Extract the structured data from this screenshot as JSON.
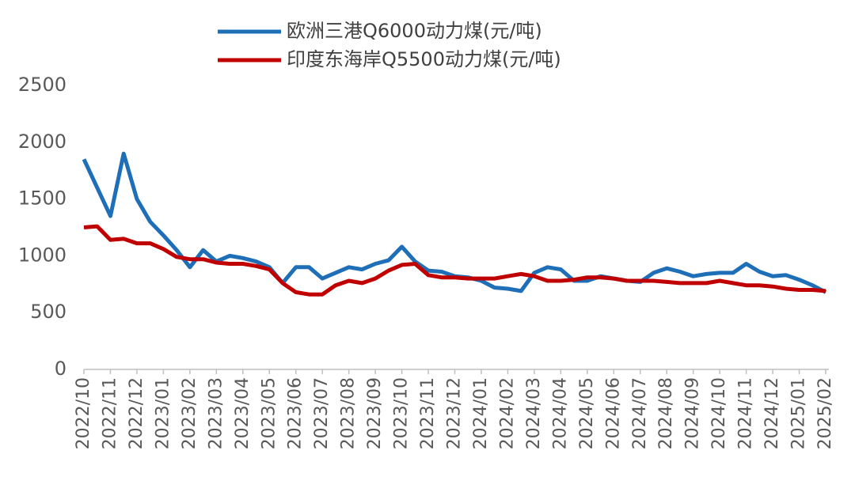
{
  "chart_data": {
    "type": "line",
    "categories": [
      "2022/10",
      null,
      "2022/11",
      null,
      "2022/12",
      null,
      "2023/01",
      null,
      "2023/02",
      null,
      "2023/03",
      null,
      "2023/04",
      null,
      "2023/05",
      null,
      "2023/06",
      null,
      "2023/07",
      null,
      "2023/08",
      null,
      "2023/09",
      null,
      "2023/10",
      null,
      "2023/11",
      null,
      "2023/12",
      null,
      "2024/01",
      null,
      "2024/02",
      null,
      "2024/03",
      null,
      "2024/04",
      null,
      "2024/05",
      null,
      "2024/06",
      null,
      "2024/07",
      null,
      "2024/08",
      null,
      "2024/09",
      null,
      "2024/10",
      null,
      "2024/11",
      null,
      "2024/12",
      null,
      "2025/01",
      null,
      "2025/02"
    ],
    "series": [
      {
        "name": "欧洲三港Q6000动力煤(元/吨)",
        "color": "#1f6fb8",
        "values": [
          1850,
          1600,
          1350,
          1900,
          1500,
          1300,
          1180,
          1050,
          900,
          1050,
          950,
          1000,
          980,
          950,
          900,
          760,
          900,
          900,
          800,
          850,
          900,
          880,
          930,
          960,
          1080,
          950,
          870,
          860,
          820,
          810,
          780,
          720,
          710,
          690,
          850,
          900,
          880,
          780,
          780,
          820,
          800,
          780,
          770,
          850,
          890,
          860,
          820,
          840,
          850,
          850,
          930,
          860,
          820,
          830,
          790,
          740,
          680
        ]
      },
      {
        "name": "印度东海岸Q5500动力煤(元/吨)",
        "color": "#c00000",
        "values": [
          1250,
          1260,
          1140,
          1150,
          1110,
          1110,
          1060,
          990,
          970,
          970,
          940,
          930,
          930,
          910,
          880,
          760,
          680,
          660,
          660,
          740,
          780,
          760,
          800,
          870,
          920,
          930,
          830,
          810,
          810,
          800,
          800,
          800,
          820,
          840,
          820,
          780,
          780,
          790,
          810,
          810,
          800,
          780,
          780,
          780,
          770,
          760,
          760,
          760,
          780,
          760,
          740,
          740,
          730,
          710,
          700,
          700,
          690
        ]
      }
    ],
    "ylim": [
      0,
      2500
    ],
    "yticks": [
      0,
      500,
      1000,
      1500,
      2000,
      2500
    ],
    "grid": false,
    "legend": "top"
  }
}
